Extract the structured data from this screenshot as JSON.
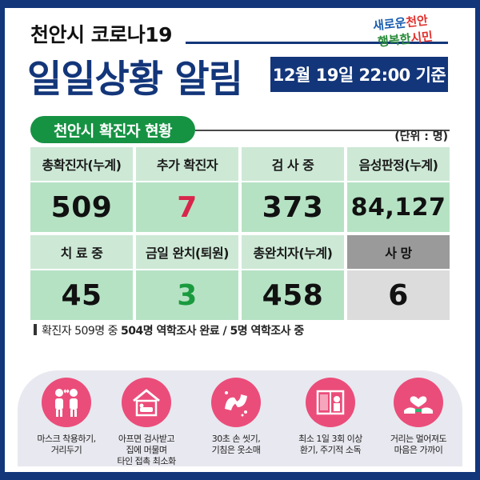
{
  "header": {
    "title_small": "천안시 코로나19",
    "title_big": "일일상황 알림",
    "date": "12월 19일 22:00 기준",
    "logo_line1_a": "새로운",
    "logo_line1_b": "천안",
    "logo_line2_a": "행복한",
    "logo_line2_b": "시민"
  },
  "section": {
    "title": "천안시 확진자 현황",
    "unit": "(단위 : 명)"
  },
  "stats": {
    "total_label": "총확진자(누계)",
    "total_value": "509",
    "new_label": "추가 확진자",
    "new_value": "7",
    "testing_label": "검 사 중",
    "testing_value": "373",
    "negative_label": "음성판정(누계)",
    "negative_value": "84,127",
    "treating_label": "치 료 중",
    "treating_value": "45",
    "today_recovered_label": "금일 완치(퇴원)",
    "today_recovered_value": "3",
    "total_recovered_label": "총완치자(누계)",
    "total_recovered_value": "458",
    "death_label": "사  망",
    "death_value": "6"
  },
  "note": {
    "prefix": "확진자 509명 중 ",
    "bold1": "504명 역학조사 완료",
    "sep": " / ",
    "bold2": "5명 역학조사 중"
  },
  "tips": [
    {
      "icon": "people-mask-icon",
      "line1": "마스크 착용하기,",
      "line2": "거리두기",
      "line3": ""
    },
    {
      "icon": "house-icon",
      "line1": "아프면 검사받고",
      "line2": "집에 머물며",
      "line3": "타인 접촉 최소화"
    },
    {
      "icon": "handwash-icon",
      "line1": "30초 손 씻기,",
      "line2": "기침은 옷소매",
      "line3": ""
    },
    {
      "icon": "window-ventilation-icon",
      "line1": "최소 1일 3회 이상",
      "line2": "환기, 주기적 소독",
      "line3": ""
    },
    {
      "icon": "heart-hands-icon",
      "line1": "거리는 멀어져도",
      "line2": "마음은 가까이",
      "line3": ""
    }
  ],
  "colors": {
    "navy": "#13367a",
    "green": "#169243",
    "pink": "#eb4d7a",
    "red_value": "#d8264a",
    "green_value": "#1a9a3e"
  }
}
